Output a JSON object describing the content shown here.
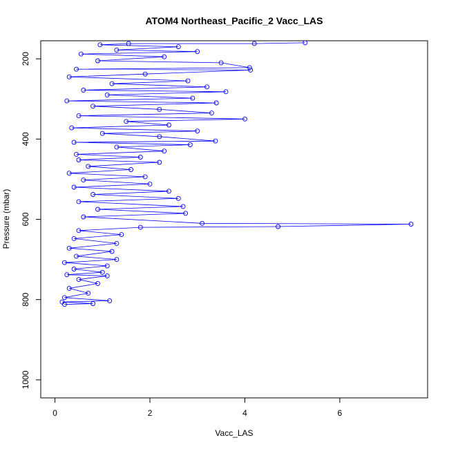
{
  "chart_data": {
    "type": "scatter",
    "title": "ATOM4 Northeast_Pacific_2 Vacc_LAS",
    "xlabel": "Vacc_LAS",
    "ylabel": "Pressure (mbar)",
    "xlim": [
      -0.3,
      7.85
    ],
    "ylim": [
      1045,
      155
    ],
    "y_reversed": true,
    "x_ticks": [
      0,
      2,
      4,
      6
    ],
    "y_ticks": [
      200,
      400,
      600,
      800,
      1000
    ],
    "grid": false,
    "legend": "none",
    "point_style": "open-circle-with-connecting-line",
    "colors": {
      "series": "#0000ff",
      "axis": "#000000"
    },
    "series": [
      {
        "points": [
          {
            "x": 5.27,
            "y": 160
          },
          {
            "x": 4.2,
            "y": 162
          },
          {
            "x": 1.55,
            "y": 162
          },
          {
            "x": 0.95,
            "y": 165
          },
          {
            "x": 2.6,
            "y": 170
          },
          {
            "x": 1.3,
            "y": 178
          },
          {
            "x": 3.0,
            "y": 182
          },
          {
            "x": 0.55,
            "y": 188
          },
          {
            "x": 2.3,
            "y": 195
          },
          {
            "x": 0.9,
            "y": 205
          },
          {
            "x": 3.5,
            "y": 210
          },
          {
            "x": 4.1,
            "y": 222
          },
          {
            "x": 0.45,
            "y": 226
          },
          {
            "x": 4.12,
            "y": 228
          },
          {
            "x": 1.9,
            "y": 238
          },
          {
            "x": 0.3,
            "y": 245
          },
          {
            "x": 2.8,
            "y": 255
          },
          {
            "x": 1.2,
            "y": 262
          },
          {
            "x": 3.2,
            "y": 270
          },
          {
            "x": 0.6,
            "y": 278
          },
          {
            "x": 3.6,
            "y": 282
          },
          {
            "x": 1.1,
            "y": 290
          },
          {
            "x": 2.9,
            "y": 298
          },
          {
            "x": 0.25,
            "y": 305
          },
          {
            "x": 3.4,
            "y": 310
          },
          {
            "x": 0.8,
            "y": 318
          },
          {
            "x": 2.2,
            "y": 326
          },
          {
            "x": 3.3,
            "y": 335
          },
          {
            "x": 0.5,
            "y": 342
          },
          {
            "x": 4.0,
            "y": 350
          },
          {
            "x": 1.5,
            "y": 356
          },
          {
            "x": 2.4,
            "y": 365
          },
          {
            "x": 0.35,
            "y": 372
          },
          {
            "x": 3.0,
            "y": 380
          },
          {
            "x": 1.0,
            "y": 386
          },
          {
            "x": 2.2,
            "y": 394
          },
          {
            "x": 3.38,
            "y": 405
          },
          {
            "x": 0.4,
            "y": 408
          },
          {
            "x": 2.85,
            "y": 414
          },
          {
            "x": 1.3,
            "y": 420
          },
          {
            "x": 2.3,
            "y": 430
          },
          {
            "x": 0.45,
            "y": 438
          },
          {
            "x": 1.8,
            "y": 445
          },
          {
            "x": 0.5,
            "y": 452
          },
          {
            "x": 2.2,
            "y": 458
          },
          {
            "x": 0.7,
            "y": 468
          },
          {
            "x": 1.6,
            "y": 476
          },
          {
            "x": 0.3,
            "y": 485
          },
          {
            "x": 1.9,
            "y": 494
          },
          {
            "x": 0.6,
            "y": 502
          },
          {
            "x": 2.0,
            "y": 512
          },
          {
            "x": 0.4,
            "y": 520
          },
          {
            "x": 2.4,
            "y": 530
          },
          {
            "x": 0.8,
            "y": 538
          },
          {
            "x": 2.6,
            "y": 548
          },
          {
            "x": 0.5,
            "y": 556
          },
          {
            "x": 2.7,
            "y": 568
          },
          {
            "x": 0.9,
            "y": 575
          },
          {
            "x": 2.75,
            "y": 585
          },
          {
            "x": 0.6,
            "y": 594
          },
          {
            "x": 3.1,
            "y": 610
          },
          {
            "x": 7.5,
            "y": 612
          },
          {
            "x": 4.7,
            "y": 618
          },
          {
            "x": 1.8,
            "y": 620
          },
          {
            "x": 0.5,
            "y": 628
          },
          {
            "x": 1.4,
            "y": 638
          },
          {
            "x": 0.4,
            "y": 648
          },
          {
            "x": 1.3,
            "y": 660
          },
          {
            "x": 0.3,
            "y": 672
          },
          {
            "x": 1.2,
            "y": 680
          },
          {
            "x": 0.45,
            "y": 692
          },
          {
            "x": 1.3,
            "y": 700
          },
          {
            "x": 0.2,
            "y": 708
          },
          {
            "x": 1.1,
            "y": 716
          },
          {
            "x": 0.4,
            "y": 724
          },
          {
            "x": 1.0,
            "y": 732
          },
          {
            "x": 0.25,
            "y": 738
          },
          {
            "x": 1.1,
            "y": 741
          },
          {
            "x": 0.5,
            "y": 750
          },
          {
            "x": 0.9,
            "y": 760
          },
          {
            "x": 0.3,
            "y": 772
          },
          {
            "x": 0.7,
            "y": 784
          },
          {
            "x": 0.2,
            "y": 795
          },
          {
            "x": 1.15,
            "y": 803
          },
          {
            "x": 0.15,
            "y": 806
          },
          {
            "x": 0.8,
            "y": 810
          },
          {
            "x": 0.2,
            "y": 812
          }
        ]
      }
    ]
  }
}
